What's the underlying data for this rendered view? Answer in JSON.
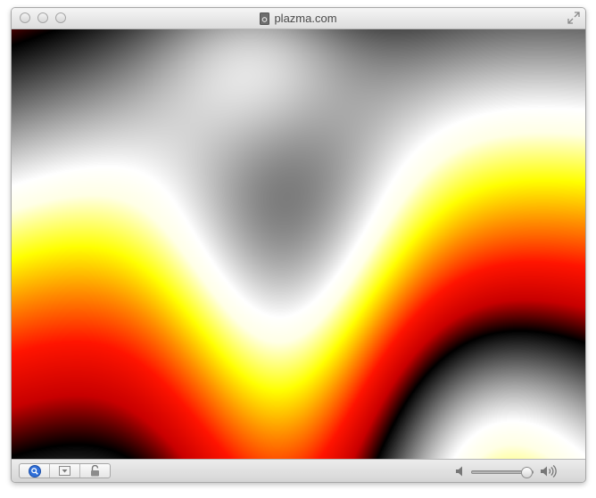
{
  "window": {
    "title": "plazma.com",
    "controls": {
      "close_icon": "close-icon",
      "minimize_icon": "minimize-icon",
      "zoom_icon": "zoom-icon",
      "fullscreen_icon": "fullscreen-icon"
    }
  },
  "content": {
    "description_icon": "plasma-canvas"
  },
  "toolbar": {
    "buttons": [
      {
        "name": "search-button",
        "icon": "magnifier-icon",
        "color": "#2a6fd6"
      },
      {
        "name": "menu-button",
        "icon": "dropdown-icon"
      },
      {
        "name": "lock-button",
        "icon": "lock-icon"
      }
    ],
    "volume": {
      "level": 0.9,
      "low_icon": "speaker-low-icon",
      "high_icon": "speaker-high-icon"
    }
  }
}
